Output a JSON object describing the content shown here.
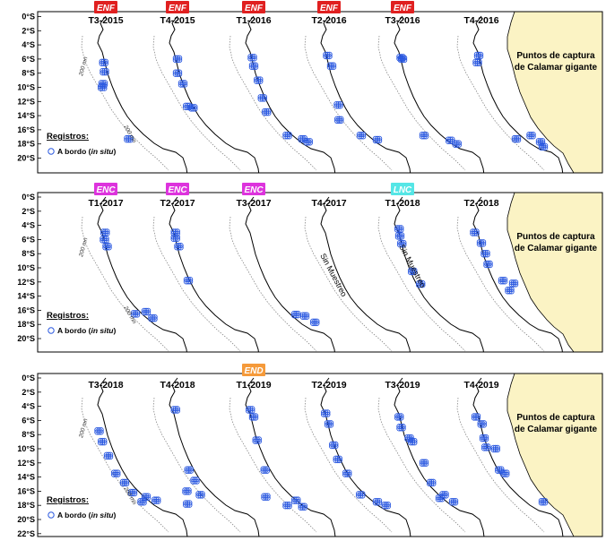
{
  "land_label": [
    "Puntos de captura",
    "de Calamar gigante"
  ],
  "legend": {
    "heading": "Registros:",
    "text": "A bordo (",
    "italic": "in situ",
    "close": ")"
  },
  "isobath_label": "200 mn",
  "no_sampling_label": "Sin Muestreo",
  "colors": {
    "land": "#fbf3c4",
    "points": "#2b59e0",
    "ENF": "#e02020",
    "ENC": "#dd33dd",
    "LNC": "#55e6e6",
    "END": "#f59a3a"
  },
  "rows": [
    {
      "lat_labels": [
        "0°S",
        "2°S",
        "4°S",
        "6°S",
        "8°S",
        "10°S",
        "12°S",
        "14°S",
        "16°S",
        "18°S",
        "20°S"
      ],
      "panels": [
        {
          "label": "T3-2015",
          "event": "ENF",
          "points": [
            [
              -81.3,
              -6.5
            ],
            [
              -81.4,
              -9.5
            ],
            [
              -81.2,
              -7.8
            ],
            [
              -81.5,
              -10
            ],
            [
              -77.6,
              -17.3
            ]
          ]
        },
        {
          "label": "T4-2015",
          "event": "ENF",
          "points": [
            [
              -81,
              -6
            ],
            [
              -81,
              -8
            ],
            [
              -80.2,
              -9.5
            ],
            [
              -79.5,
              -12.7
            ],
            [
              -78.7,
              -12.9
            ]
          ]
        },
        {
          "label": "T1-2016",
          "event": "ENF",
          "points": [
            [
              -81.2,
              -5.8
            ],
            [
              -81,
              -7
            ],
            [
              -80.3,
              -9
            ],
            [
              -79.7,
              -11.5
            ],
            [
              -79.1,
              -13.5
            ],
            [
              -76,
              -16.8
            ],
            [
              -73.7,
              -17.3
            ],
            [
              -72.9,
              -17.7
            ]
          ]
        },
        {
          "label": "T2-2016",
          "event": "ENF",
          "points": [
            [
              -81.2,
              -5.5
            ],
            [
              -80.6,
              -7
            ],
            [
              -79.6,
              -12.5
            ],
            [
              -79.5,
              -14.6
            ],
            [
              -76.2,
              -16.8
            ],
            [
              -73.8,
              -17.4
            ]
          ]
        },
        {
          "label": "T3-2016",
          "event": "ENF",
          "points": [
            [
              -81.2,
              -5.8
            ],
            [
              -81,
              -6
            ],
            [
              -77.8,
              -16.8
            ],
            [
              -73.9,
              -17.5
            ],
            [
              -72.9,
              -18
            ]
          ]
        },
        {
          "label": "T4-2016",
          "event": "",
          "points": [
            [
              -81.4,
              -5.5
            ],
            [
              -81.6,
              -6.5
            ],
            [
              -75.8,
              -17.3
            ],
            [
              -73.6,
              -16.8
            ],
            [
              -72.2,
              -17.7
            ],
            [
              -71.8,
              -18.4
            ]
          ]
        }
      ]
    },
    {
      "lat_labels": [
        "0°S",
        "2°S",
        "4°S",
        "6°S",
        "8°S",
        "10°S",
        "12°S",
        "14°S",
        "16°S",
        "18°S",
        "20°S"
      ],
      "panels": [
        {
          "label": "T1-2017",
          "event": "ENC",
          "points": [
            [
              -81.1,
              -5
            ],
            [
              -81.2,
              -6
            ],
            [
              -80.8,
              -7
            ],
            [
              -76.6,
              -16.5
            ],
            [
              -75,
              -16.2
            ],
            [
              -74,
              -17.1
            ]
          ]
        },
        {
          "label": "T2-2017",
          "event": "ENC",
          "points": [
            [
              -81.3,
              -5
            ],
            [
              -81.3,
              -5.8
            ],
            [
              -80.8,
              -7
            ],
            [
              -79.4,
              -11.8
            ]
          ]
        },
        {
          "label": "T3-2017",
          "event": "ENC",
          "points": [
            [
              -74.7,
              -16.6
            ],
            [
              -73.4,
              -16.8
            ],
            [
              -71.9,
              -17.7
            ]
          ]
        },
        {
          "label": "T4-2017",
          "event": "",
          "no_sampling": true,
          "points": []
        },
        {
          "label": "T1-2018",
          "event": "LNC",
          "points": [
            [
              -81.5,
              -4.5
            ],
            [
              -81.4,
              -5.5
            ],
            [
              -81.1,
              -6.6
            ],
            [
              -79.5,
              -10.5
            ],
            [
              -78.3,
              -12.3
            ]
          ]
        },
        {
          "label": "T2-2018",
          "event": "",
          "points": [
            [
              -82,
              -5
            ],
            [
              -81,
              -6.5
            ],
            [
              -80.4,
              -8
            ],
            [
              -80,
              -9.5
            ],
            [
              -77.8,
              -11.8
            ],
            [
              -76.8,
              -13.2
            ],
            [
              -76.2,
              -12.2
            ]
          ]
        }
      ]
    },
    {
      "lat_labels": [
        "0°S",
        "2°S",
        "4°S",
        "6°S",
        "8°S",
        "10°S",
        "12°S",
        "14°S",
        "16°S",
        "18°S",
        "20°S",
        "22°S"
      ],
      "panels": [
        {
          "label": "T3-2018",
          "event": "",
          "points": [
            [
              -82,
              -7.5
            ],
            [
              -81.5,
              -9
            ],
            [
              -80.6,
              -11
            ],
            [
              -79.5,
              -13.5
            ],
            [
              -78.2,
              -14.8
            ],
            [
              -77,
              -16.2
            ],
            [
              -75.6,
              -17.5
            ],
            [
              -75,
              -16.8
            ],
            [
              -73.5,
              -17.3
            ]
          ]
        },
        {
          "label": "T4-2018",
          "event": "",
          "points": [
            [
              -81.3,
              -4.5
            ],
            [
              -79.3,
              -13
            ],
            [
              -79.6,
              -16
            ],
            [
              -79.5,
              -17.8
            ],
            [
              -77.6,
              -16.5
            ],
            [
              -78.4,
              -14.5
            ]
          ]
        },
        {
          "label": "T1-2019",
          "event": "END",
          "points": [
            [
              -81.5,
              -4.5
            ],
            [
              -81,
              -5.5
            ],
            [
              -80.5,
              -8.8
            ],
            [
              -79.3,
              -13
            ],
            [
              -79.2,
              -16.8
            ],
            [
              -74.7,
              -17.3
            ],
            [
              -73.7,
              -18.2
            ],
            [
              -76,
              -18
            ]
          ]
        },
        {
          "label": "T2-2019",
          "event": "",
          "points": [
            [
              -81.5,
              -5
            ],
            [
              -81,
              -6.5
            ],
            [
              -80.3,
              -9.5
            ],
            [
              -79.7,
              -11.5
            ],
            [
              -78.3,
              -13.5
            ],
            [
              -76.3,
              -16.5
            ],
            [
              -73.8,
              -17.5
            ],
            [
              -72.5,
              -18
            ]
          ]
        },
        {
          "label": "T3-2019",
          "event": "",
          "points": [
            [
              -81.5,
              -5.5
            ],
            [
              -81.2,
              -7
            ],
            [
              -79.5,
              -9
            ],
            [
              -80,
              -8.5
            ],
            [
              -77.8,
              -12
            ],
            [
              -76.7,
              -14.8
            ],
            [
              -75.4,
              -17
            ],
            [
              -73.4,
              -17.5
            ],
            [
              -74.8,
              -16.5
            ]
          ]
        },
        {
          "label": "T4-2019",
          "event": "",
          "points": [
            [
              -81.8,
              -5.5
            ],
            [
              -80.9,
              -6.5
            ],
            [
              -80.6,
              -8.5
            ],
            [
              -80.3,
              -9.8
            ],
            [
              -78.9,
              -10
            ],
            [
              -78.3,
              -13
            ],
            [
              -77.5,
              -13.5
            ],
            [
              -71.8,
              -17.5
            ]
          ]
        }
      ]
    }
  ]
}
